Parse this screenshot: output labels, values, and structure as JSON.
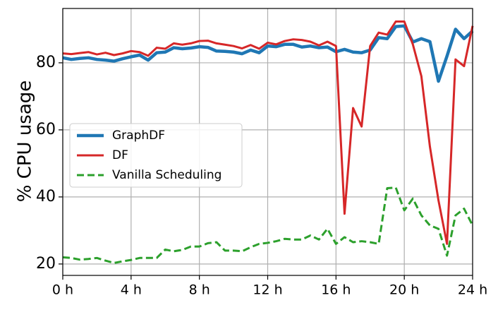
{
  "chart_data": {
    "type": "line",
    "ylabel": "% CPU usage",
    "x": [
      0,
      0.5,
      1,
      1.5,
      2,
      2.5,
      3,
      3.5,
      4,
      4.5,
      5,
      5.5,
      6,
      6.5,
      7,
      7.5,
      8,
      8.5,
      9,
      9.5,
      10,
      10.5,
      11,
      11.5,
      12,
      12.5,
      13,
      13.5,
      14,
      14.5,
      15,
      15.5,
      16,
      16.5,
      17,
      17.5,
      18,
      18.5,
      19,
      19.5,
      20,
      20.5,
      21,
      21.5,
      22,
      22.5,
      23,
      23.5,
      24
    ],
    "series": [
      {
        "name": "GraphDF",
        "color": "#1f77b4",
        "width": 4.5,
        "dash": "none",
        "values": [
          81.5,
          81,
          81.3,
          81.5,
          81,
          80.8,
          80.5,
          81.2,
          81.8,
          82.3,
          80.8,
          83,
          83.2,
          84.5,
          84.2,
          84.4,
          84.8,
          84.6,
          83.5,
          83.4,
          83.2,
          82.7,
          83.8,
          83,
          85,
          84.8,
          85.5,
          85.5,
          84.7,
          85,
          84.5,
          84.7,
          83.3,
          84,
          83.2,
          83,
          83.8,
          87.5,
          87.2,
          90.8,
          91,
          86.2,
          87.2,
          86.3,
          74.5,
          82,
          90,
          87.2,
          89.5
        ]
      },
      {
        "name": "DF",
        "color": "#d62728",
        "width": 3,
        "dash": "none",
        "values": [
          82.8,
          82.6,
          82.9,
          83.2,
          82.5,
          83,
          82.3,
          82.8,
          83.5,
          83.2,
          82.1,
          84.5,
          84.2,
          85.8,
          85.4,
          85.8,
          86.5,
          86.6,
          85.8,
          85.4,
          85,
          84.3,
          85.3,
          84.2,
          86,
          85.5,
          86.5,
          87,
          86.8,
          86.3,
          85.2,
          86.3,
          85,
          35,
          66.5,
          61,
          85,
          89,
          88.4,
          92.3,
          92.3,
          85.5,
          76,
          55,
          39,
          26,
          81,
          79,
          91
        ]
      },
      {
        "name": "Vanilla Scheduling",
        "color": "#2ca02c",
        "width": 3,
        "dash": "10 5",
        "values": [
          22,
          21.8,
          21.3,
          21.5,
          21.8,
          21,
          20.3,
          20.8,
          21.2,
          21.8,
          21.8,
          21.8,
          24.3,
          23.8,
          24.2,
          25.2,
          25.2,
          26.2,
          26.5,
          24,
          24,
          23.8,
          25,
          26,
          26.3,
          26.8,
          27.5,
          27.3,
          27.3,
          28.5,
          27.3,
          30.5,
          26,
          28,
          26.5,
          26.8,
          26.5,
          26,
          42.6,
          42.8,
          36,
          39.5,
          34.5,
          31.5,
          30.5,
          22.5,
          34.5,
          36.5,
          31.5
        ]
      }
    ],
    "xlim": [
      0,
      24
    ],
    "xticks": [
      {
        "value": 0,
        "label": "0 h"
      },
      {
        "value": 4,
        "label": "4 h"
      },
      {
        "value": 8,
        "label": "8 h"
      },
      {
        "value": 12,
        "label": "12 h"
      },
      {
        "value": 16,
        "label": "16 h"
      },
      {
        "value": 20,
        "label": "20 h"
      },
      {
        "value": 24,
        "label": "24 h"
      }
    ],
    "ylim": [
      16.6,
      96.2
    ],
    "yticks": [
      20,
      40,
      60,
      80
    ],
    "grid": true,
    "legend": "center-left"
  }
}
